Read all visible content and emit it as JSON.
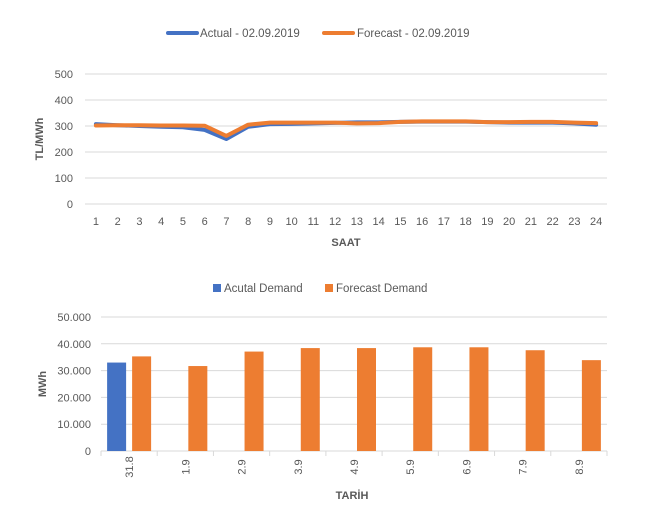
{
  "chart_data": [
    {
      "type": "line",
      "title": "",
      "xlabel": "SAAT",
      "ylabel": "TL/MWh",
      "ylim": [
        0,
        500
      ],
      "yticks": [
        "0",
        "100",
        "200",
        "300",
        "400",
        "500"
      ],
      "grid": true,
      "legend_position": "top-center",
      "categories": [
        "1",
        "2",
        "3",
        "4",
        "5",
        "6",
        "7",
        "8",
        "9",
        "10",
        "11",
        "12",
        "13",
        "14",
        "15",
        "16",
        "17",
        "18",
        "19",
        "20",
        "21",
        "22",
        "23",
        "24"
      ],
      "series": [
        {
          "name": "Actual - 02.09.2019",
          "color": "#4472C4",
          "values": [
            307,
            303,
            300,
            297,
            295,
            285,
            250,
            297,
            307,
            308,
            310,
            312,
            314,
            314,
            316,
            317,
            317,
            317,
            315,
            313,
            313,
            313,
            310,
            305
          ]
        },
        {
          "name": "Forecast - 02.09.2019",
          "color": "#ED7D31",
          "values": [
            302,
            303,
            303,
            302,
            302,
            301,
            262,
            305,
            313,
            313,
            313,
            313,
            310,
            311,
            316,
            318,
            318,
            318,
            315,
            315,
            316,
            316,
            313,
            311
          ]
        }
      ]
    },
    {
      "type": "bar",
      "title": "",
      "xlabel": "TARİH",
      "ylabel": "MWh",
      "ylim": [
        0,
        50000
      ],
      "yticks": [
        "0",
        "10.000",
        "20.000",
        "30.000",
        "40.000",
        "50.000"
      ],
      "grid": true,
      "legend_position": "top-center",
      "categories": [
        "31.8",
        "1.9",
        "2.9",
        "3.9",
        "4.9",
        "5.9",
        "6.9",
        "7.9",
        "8.9"
      ],
      "series": [
        {
          "name": "Acutal Demand",
          "color": "#4472C4",
          "values": [
            33000,
            null,
            null,
            null,
            null,
            null,
            null,
            null,
            null
          ]
        },
        {
          "name": "Forecast Demand",
          "color": "#ED7D31",
          "values": [
            35300,
            31700,
            37100,
            38400,
            38400,
            38700,
            38700,
            37600,
            33900
          ]
        }
      ]
    }
  ]
}
